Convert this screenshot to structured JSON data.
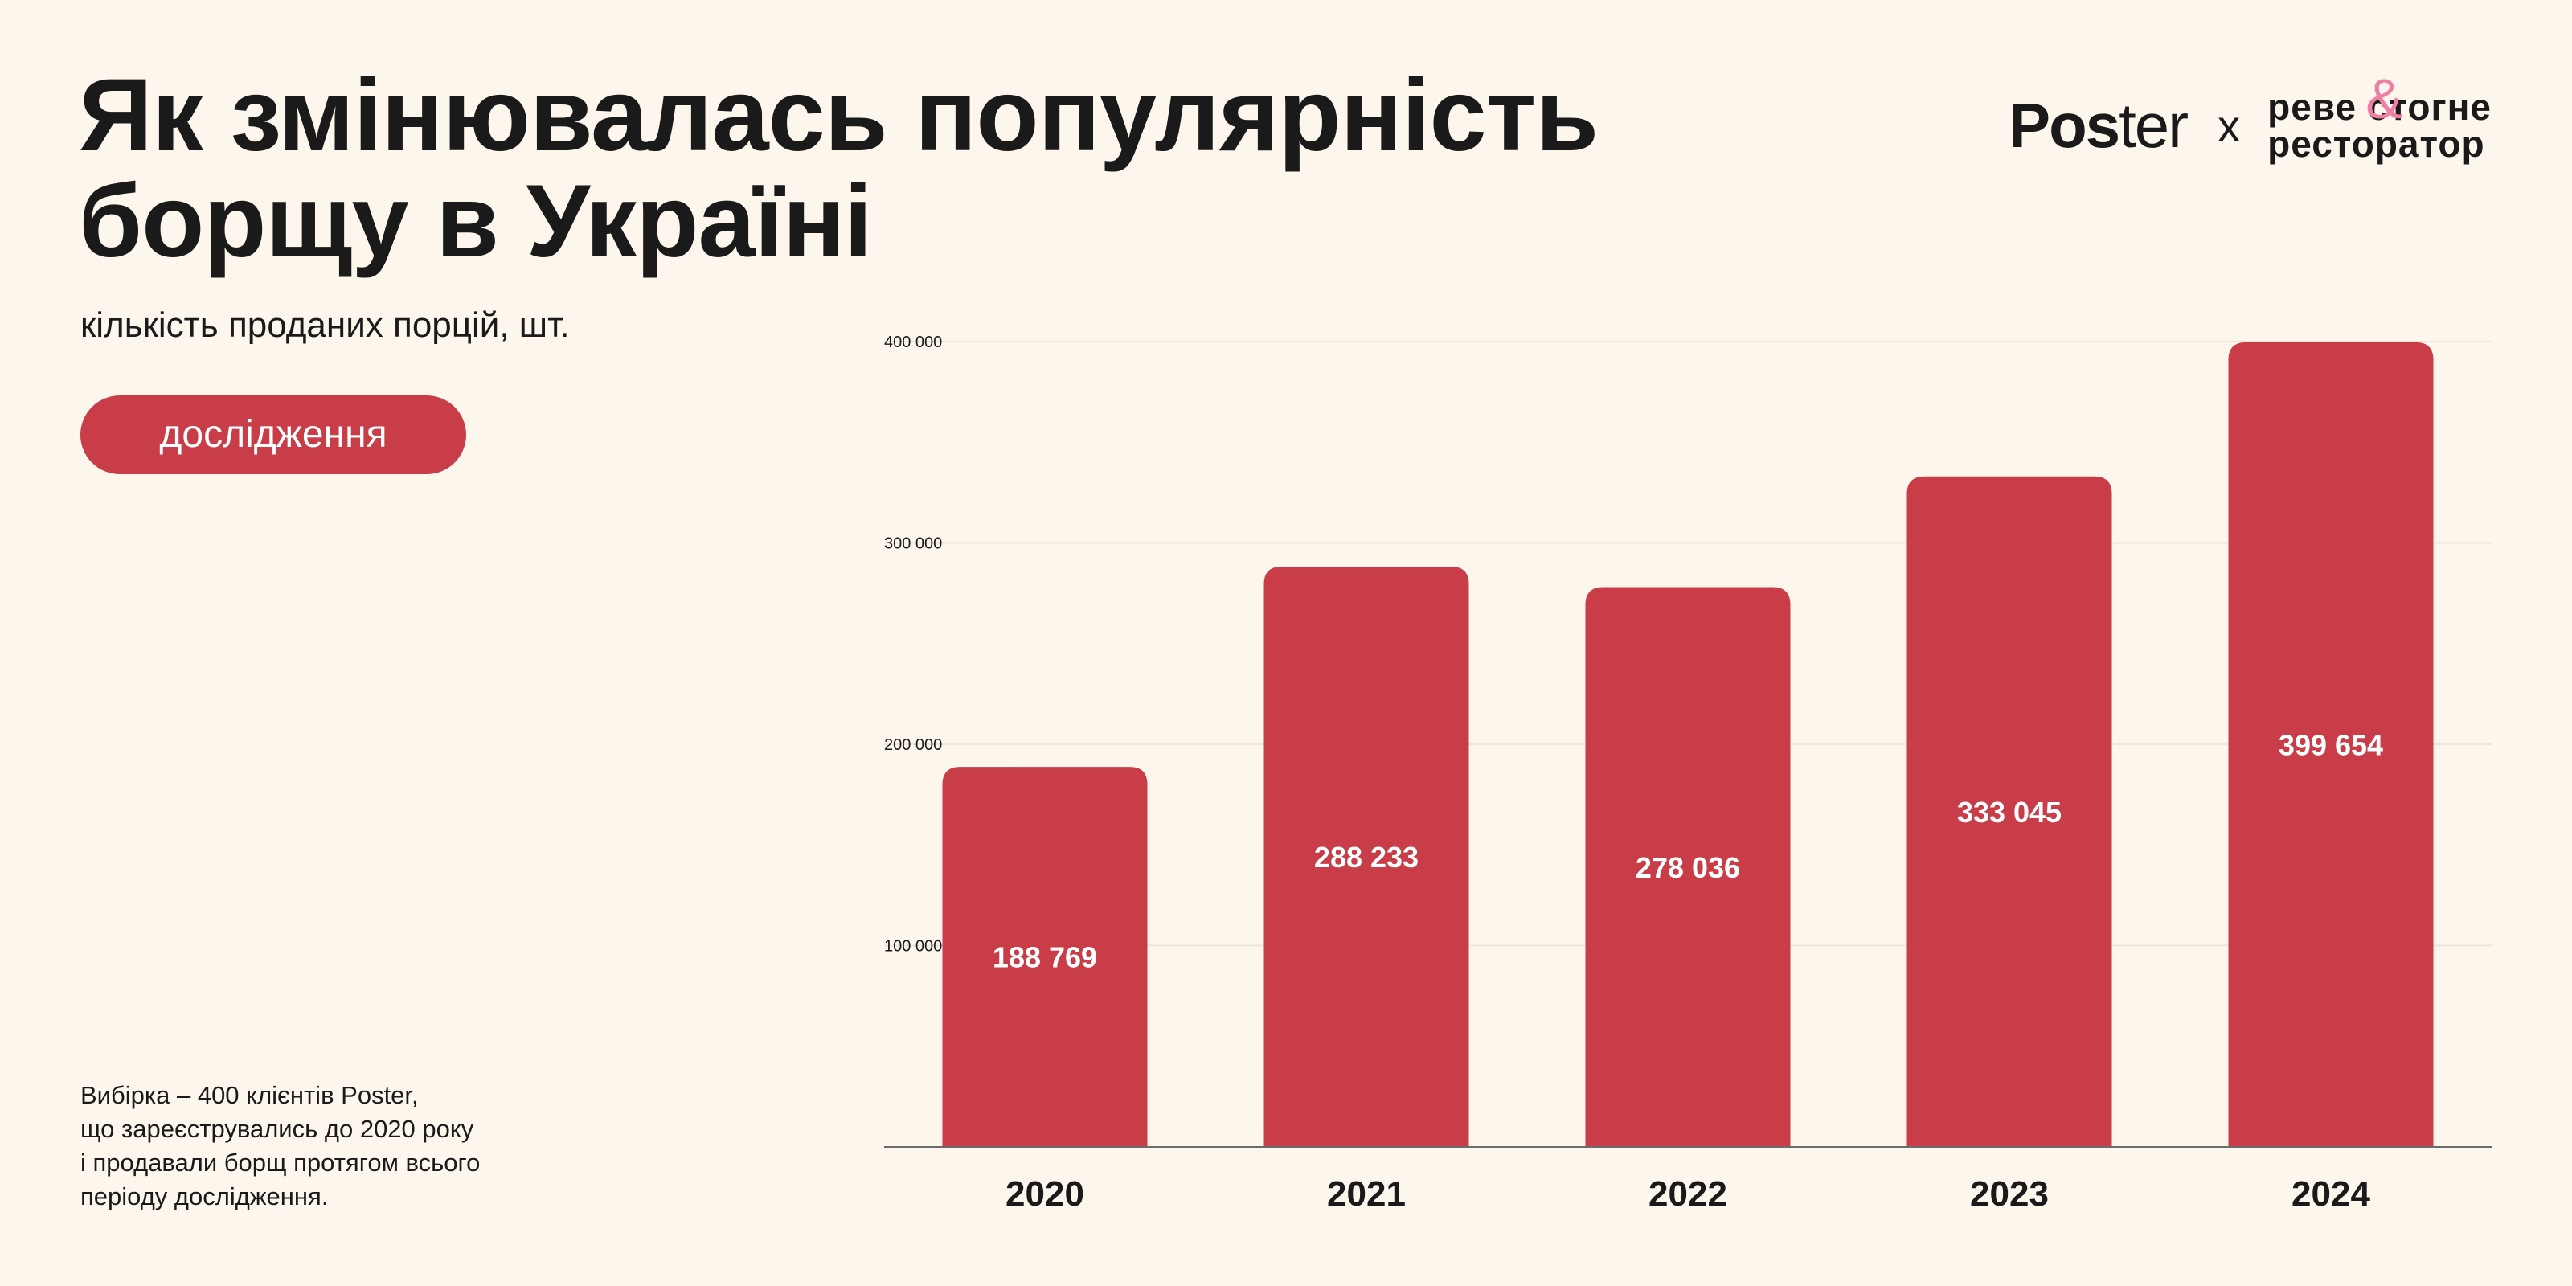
{
  "header": {
    "title_lines": [
      "Як змінювалась популярність",
      "борщу в Україні"
    ],
    "subtitle": "кількість проданих порцій, шт.",
    "badge": "дослідження"
  },
  "logos": {
    "poster_bold": "Pos",
    "poster_rest": "ter",
    "separator": "x",
    "partner_line1": "реве стогне",
    "partner_line2": "ресторатор",
    "partner_ampersand": "&"
  },
  "footnote": {
    "lines": [
      "Вибірка – 400 клієнтів Poster,",
      "що зареєструвались до 2020 року",
      "і продавали борщ протягом всього",
      "періоду дослідження."
    ]
  },
  "colors": {
    "bar": "#c83d47",
    "background": "#fdf6ec",
    "text": "#1a1a1a",
    "accent_pink": "#ef7fa4"
  },
  "chart_data": {
    "type": "bar",
    "title": "Як змінювалась популярність борщу в Україні",
    "ylabel": "кількість проданих порцій, шт.",
    "xlabel": "",
    "categories": [
      "2020",
      "2021",
      "2022",
      "2023",
      "2024"
    ],
    "values": [
      188769,
      288233,
      278036,
      333045,
      399654
    ],
    "value_labels": [
      "188 769",
      "288 233",
      "278 036",
      "333 045",
      "399 654"
    ],
    "ylim": [
      0,
      400000
    ],
    "yticks": [
      100000,
      200000,
      300000,
      400000
    ],
    "ytick_labels": [
      "100 000",
      "200 000",
      "300 000",
      "400 000"
    ],
    "grid": true,
    "legend": "none"
  }
}
